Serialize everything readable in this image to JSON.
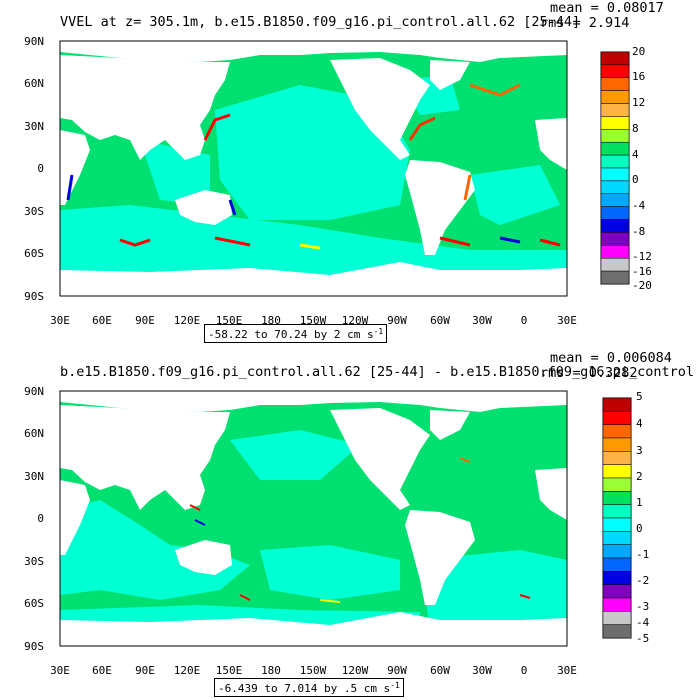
{
  "panels": [
    {
      "title": "VVEL at z= 305.1m, b.e15.B1850.f09_g16.pi_control.all.62 [25-44]",
      "mean_text": "mean = 0.08017",
      "rms_text": "rms = 2.914",
      "range_text": "-58.22 to 70.24 by 2 cm s",
      "range_unit_exp": "-1",
      "colorbar_labels": [
        "20",
        "16",
        "12",
        "8",
        "4",
        "0",
        "-4",
        "-8",
        "-12",
        "-16",
        "-20"
      ]
    },
    {
      "title": "b.e15.B1850.f09_g16.pi_control.all.62 [25-44] - b.e15.B1850.f09_g16.pi_control",
      "mean_text": "mean = 0.006084",
      "rms_text": "rms = 0.3282",
      "range_text": "-6.439 to 7.014 by .5 cm s",
      "range_unit_exp": "-1",
      "colorbar_labels": [
        "5",
        "4",
        "3",
        "2",
        "1",
        "0",
        "-1",
        "-2",
        "-3",
        "-4",
        "-5"
      ]
    }
  ],
  "y_axis_labels": [
    "90N",
    "60N",
    "30N",
    "0",
    "30S",
    "60S",
    "90S"
  ],
  "x_axis_labels": [
    "30E",
    "60E",
    "90E",
    "120E",
    "150E",
    "180",
    "150W",
    "120W",
    "90W",
    "60W",
    "30W",
    "0",
    "30E"
  ],
  "colorbar_colors": [
    "#c00000",
    "#ff0000",
    "#ff6600",
    "#ff9900",
    "#ffb347",
    "#ffff00",
    "#99ff33",
    "#00e060",
    "#00ffc0",
    "#00ffff",
    "#00d8ff",
    "#00a8ff",
    "#0066ff",
    "#0000e0",
    "#8000c0",
    "#ff00ff",
    "#c8c8c8",
    "#6e6e6e"
  ],
  "colors": {
    "ocean_main": "#00e070",
    "ocean_cyan": "#00ffd2",
    "land": "#ffffff",
    "frame": "#000000"
  }
}
